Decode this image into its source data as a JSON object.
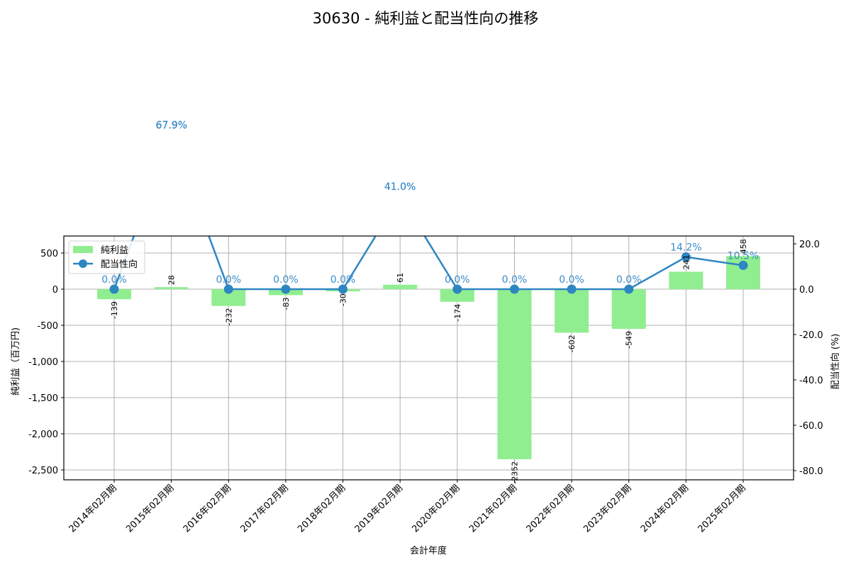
{
  "title": "30630 - 純利益と配当性向の推移",
  "chart_data": {
    "type": "bar+line",
    "title": "30630 - 純利益と配当性向の推移",
    "xlabel": "会計年度",
    "ylabel_left": "純利益（百万円)",
    "ylabel_right": "配当性向 (%)",
    "categories": [
      "2014年02月期",
      "2015年02月期",
      "2016年02月期",
      "2017年02月期",
      "2018年02月期",
      "2019年02月期",
      "2020年02月期",
      "2021年02月期",
      "2022年02月期",
      "2023年02月期",
      "2024年02月期",
      "2025年02月期"
    ],
    "series": [
      {
        "name": "純利益",
        "type": "bar",
        "axis": "left",
        "color": "#90ee90",
        "values": [
          -139,
          28,
          -232,
          -83,
          -30,
          61,
          -174,
          -2352,
          -602,
          -549,
          241,
          458
        ],
        "labels": [
          "-139",
          "28",
          "-232",
          "-83",
          "-30",
          "61",
          "-174",
          "-2352",
          "-602",
          "-549",
          "241",
          "458"
        ]
      },
      {
        "name": "配当性向",
        "type": "line",
        "axis": "right",
        "color": "#2e86c1",
        "values": [
          0.0,
          67.9,
          0.0,
          0.0,
          0.0,
          41.0,
          0.0,
          0.0,
          0.0,
          0.0,
          14.2,
          10.5
        ],
        "labels": [
          "0.0%",
          "67.9%",
          "0.0%",
          "0.0%",
          "0.0%",
          "41.0%",
          "0.0%",
          "0.0%",
          "0.0%",
          "0.0%",
          "14.2%",
          "10.5%"
        ]
      }
    ],
    "ylim_left": [
      -2630,
      740
    ],
    "yticks_left": [
      "500",
      "0",
      "-500",
      "-1,000",
      "-1,500",
      "-2,000",
      "-2,500"
    ],
    "yticks_left_values": [
      500,
      0,
      -500,
      -1000,
      -1500,
      -2000,
      -2500
    ],
    "ylim_right": [
      -84.3,
      23.4
    ],
    "yticks_right": [
      "20.0",
      "0.0",
      "-20.0",
      "-40.0",
      "-60.0",
      "-80.0"
    ],
    "yticks_right_values": [
      20,
      0,
      -20,
      -40,
      -60,
      -80
    ],
    "grid": true,
    "legend_position": "upper left"
  },
  "legend": {
    "items": [
      {
        "label": "純利益"
      },
      {
        "label": "配当性向"
      }
    ]
  }
}
